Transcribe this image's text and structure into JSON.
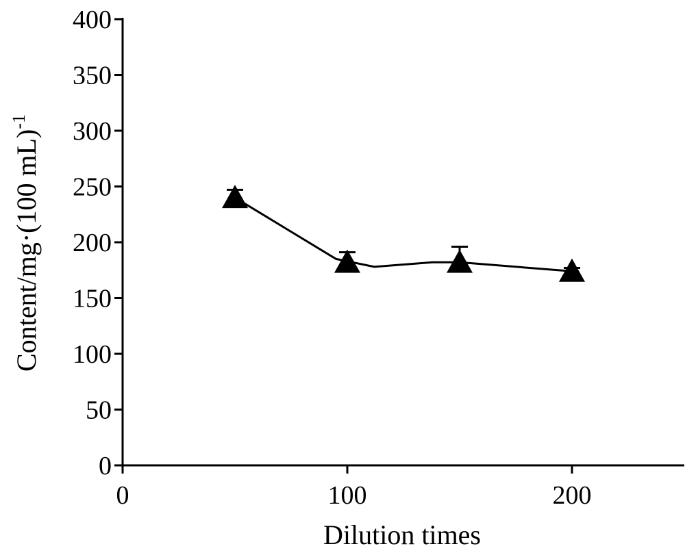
{
  "chart_data": {
    "type": "line",
    "title": "",
    "xlabel": "Dilution times",
    "ylabel": "Content/mg·(100 mL)",
    "ylabel_superscript": "-1",
    "xlim": [
      0,
      250
    ],
    "ylim": [
      0,
      400
    ],
    "x_ticks": [
      0,
      100,
      200
    ],
    "y_ticks": [
      0,
      50,
      100,
      150,
      200,
      250,
      300,
      350,
      400
    ],
    "grid": false,
    "marker": "triangle",
    "series": [
      {
        "x": [
          50,
          100,
          150,
          200
        ],
        "values": [
          240,
          182,
          182,
          174
        ],
        "error_upper": [
          247,
          191,
          196,
          177
        ]
      }
    ],
    "line_path": [
      [
        50,
        240
      ],
      [
        77,
        207
      ],
      [
        95,
        185
      ],
      [
        112,
        178
      ],
      [
        138,
        182
      ],
      [
        150,
        182
      ],
      [
        200,
        174
      ]
    ]
  }
}
